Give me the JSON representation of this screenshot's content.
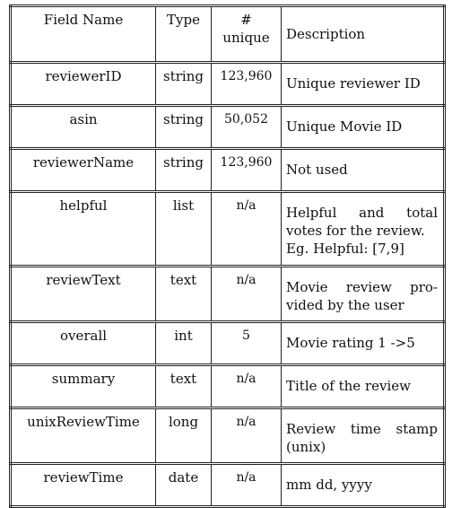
{
  "header": {
    "field_name": "Field Name",
    "type": "Type",
    "unique": "# unique",
    "description": "Description"
  },
  "rows": [
    {
      "name": "reviewerID",
      "type": "string",
      "unique": "123,960",
      "desc": [
        "Unique reviewer ID"
      ]
    },
    {
      "name": "asin",
      "type": "string",
      "unique": "50,052",
      "desc": [
        "Unique Movie ID"
      ]
    },
    {
      "name": "reviewerName",
      "type": "string",
      "unique": "123,960",
      "desc": [
        "Not used"
      ]
    },
    {
      "name": "helpful",
      "type": "list",
      "unique": "n/a",
      "desc": [
        "Helpful and total",
        "votes for the review.",
        "Eg. Helpful: [7,9]"
      ]
    },
    {
      "name": "reviewText",
      "type": "text",
      "unique": "n/a",
      "desc": [
        "Movie review pro-",
        "vided by the user"
      ]
    },
    {
      "name": "overall",
      "type": "int",
      "unique": "5",
      "desc": [
        "Movie rating 1 ->5"
      ]
    },
    {
      "name": "summary",
      "type": "text",
      "unique": "n/a",
      "desc": [
        "Title of the review"
      ]
    },
    {
      "name": "unixReviewTime",
      "type": "long",
      "unique": "n/a",
      "desc": [
        "Review time stamp",
        "(unix)"
      ]
    },
    {
      "name": "reviewTime",
      "type": "date",
      "unique": "n/a",
      "desc": [
        "mm dd, yyyy"
      ]
    }
  ]
}
